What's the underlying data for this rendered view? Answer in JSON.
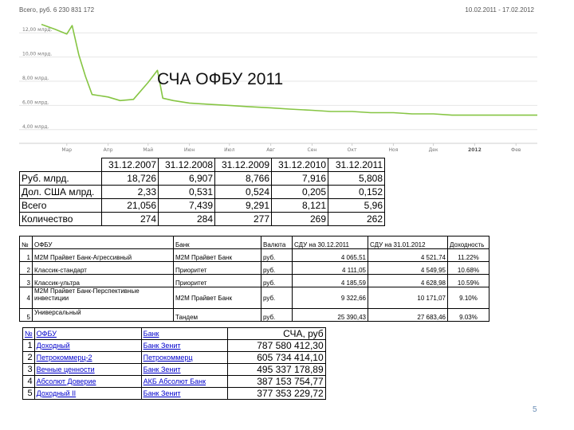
{
  "chart": {
    "total_label": "Всего, руб. 6 230 831 172",
    "range_label": "10.02.2011 - 17.02.2012",
    "y_ticks": [
      "12,00 млрд.",
      "10,00 млрд.",
      "8,00 млрд.",
      "6,00 млрд.",
      "4,00 млрд."
    ],
    "x_ticks": [
      "Мар",
      "Апр",
      "Май",
      "Июн",
      "Июл",
      "Авг",
      "Сен",
      "Окт",
      "Ноя",
      "Дек",
      "2012",
      "Фев"
    ],
    "line_color": "#86c543",
    "title": "СЧА ОФБУ 2011"
  },
  "chart_data": {
    "type": "line",
    "title": "СЧА ОФБУ 2011",
    "xlabel": "",
    "ylabel": "",
    "ylim": [
      3000000000,
      13000000000
    ],
    "grid": true,
    "x": [
      "10.02.2011",
      "20.02.2011",
      "01.03.2011",
      "05.03.2011",
      "10.03.2011",
      "15.03.2011",
      "20.03.2011",
      "01.04.2011",
      "10.04.2011",
      "20.04.2011",
      "01.05.2011",
      "08.05.2011",
      "12.05.2011",
      "20.05.2011",
      "01.06.2011",
      "15.06.2011",
      "01.07.2011",
      "15.07.2011",
      "01.08.2011",
      "15.08.2011",
      "01.09.2011",
      "15.09.2011",
      "01.10.2011",
      "15.10.2011",
      "01.11.2011",
      "15.11.2011",
      "01.12.2011",
      "15.12.2011",
      "01.01.2012",
      "15.01.2012",
      "01.02.2012",
      "17.02.2012"
    ],
    "series": [
      {
        "values": [
          12700000000,
          12300000000,
          11900000000,
          12600000000,
          10200000000,
          8400000000,
          6900000000,
          6700000000,
          6400000000,
          6500000000,
          7900000000,
          8900000000,
          6600000000,
          6400000000,
          6200000000,
          6100000000,
          6000000000,
          5900000000,
          5800000000,
          5700000000,
          5600000000,
          5500000000,
          5500000000,
          5400000000,
          5400000000,
          5300000000,
          5300000000,
          5200000000,
          5200000000,
          5200000000,
          5200000000,
          5200000000
        ]
      }
    ]
  },
  "table1": {
    "headers": [
      "31.12.2007",
      "31.12.2008",
      "31.12.2009",
      "31.12.2010",
      "31.12.2011"
    ],
    "rows": [
      {
        "label": "Руб. млрд.",
        "values": [
          "18,726",
          "6,907",
          "8,766",
          "7,916",
          "5,808"
        ]
      },
      {
        "label": "Дол. США млрд.",
        "values": [
          "2,33",
          "0,531",
          "0,524",
          "0,205",
          "0,152"
        ]
      },
      {
        "label": "Всего",
        "values": [
          "21,056",
          "7,439",
          "9,291",
          "8,121",
          "5,96"
        ]
      },
      {
        "label": "Количество",
        "values": [
          "274",
          "284",
          "277",
          "269",
          "262"
        ]
      }
    ]
  },
  "table2": {
    "headers": [
      "№",
      "ОФБУ",
      "Банк",
      "Валюта",
      "СДУ на 30.12.2011",
      "СДУ на 31.01.2012",
      "Доходность"
    ],
    "rows": [
      {
        "n": "1",
        "fund": "М2М Прайвет Банк-Агрессивный",
        "bank": "М2М Прайвет Банк",
        "currency": "руб.",
        "sdu1": "4 065,51",
        "sdu2": "4 521,74",
        "yield": "11.22%"
      },
      {
        "n": "2",
        "fund": "Классик-стандарт",
        "bank": "Приоритет",
        "currency": "руб.",
        "sdu1": "4 111,05",
        "sdu2": "4 549,95",
        "yield": "10.68%"
      },
      {
        "n": "3",
        "fund": "Классик-ультра",
        "bank": "Приоритет",
        "currency": "руб.",
        "sdu1": "4 185,59",
        "sdu2": "4 628,98",
        "yield": "10.59%"
      },
      {
        "n": "4",
        "fund": "М2М Прайвет Банк-Перспективные инвестиции",
        "bank": "М2М Прайвет Банк",
        "currency": "руб.",
        "sdu1": "9 322,66",
        "sdu2": "10 171,07",
        "yield": "9.10%"
      },
      {
        "n": "5",
        "fund": "Универсальный",
        "bank": "Тандем",
        "currency": "руб.",
        "sdu1": "25 390,43",
        "sdu2": "27 683,46",
        "yield": "9.03%"
      }
    ]
  },
  "table3": {
    "headers": [
      "№",
      "ОФБУ",
      "Банк",
      "СЧА, руб"
    ],
    "rows": [
      {
        "n": "1",
        "fund": "Доходный",
        "bank": "Банк Зенит",
        "value": "787 580 412,30"
      },
      {
        "n": "2",
        "fund": "Петрокоммерц-2",
        "bank": "Петрокоммерц",
        "value": "605 734 414,10"
      },
      {
        "n": "3",
        "fund": "Вечные ценности",
        "bank": "Банк Зенит",
        "value": "495 337 178,89"
      },
      {
        "n": "4",
        "fund": "Абсолют Доверие",
        "bank": "АКБ Абсолют Банк",
        "value": "387 153 754,77"
      },
      {
        "n": "5",
        "fund": "Доходный II",
        "bank": "Банк Зенит",
        "value": "377 353 229,72"
      }
    ]
  },
  "page_number": "5"
}
